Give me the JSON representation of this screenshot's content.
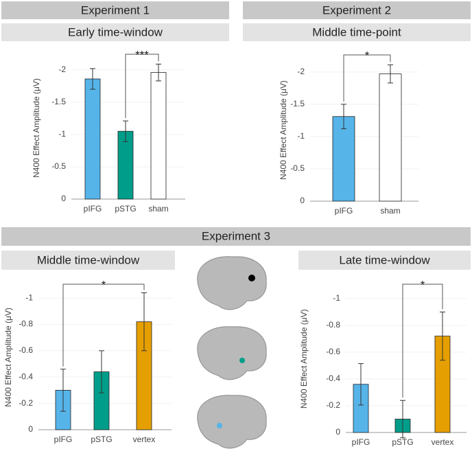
{
  "experiments": [
    "Experiment 1",
    "Experiment 2",
    "Experiment 3"
  ],
  "chart_data": [
    {
      "type": "bar",
      "title": "Early time-window",
      "y_label": "N400 Effect Amplitude (μV)",
      "categories": [
        "pIFG",
        "pSTG",
        "sham"
      ],
      "values": [
        -1.86,
        -1.05,
        -1.96
      ],
      "errors": [
        0.16,
        0.16,
        0.13
      ],
      "colors": [
        "#56b4e9",
        "#009e8a",
        "#ffffff"
      ],
      "ylim": [
        0,
        -2.2
      ],
      "yticks": [
        0,
        -0.5,
        -1,
        -1.5,
        -2
      ],
      "grid": true,
      "annotation": "***"
    },
    {
      "type": "bar",
      "title": "Middle time-point",
      "y_label": "N400 Effect Amplitude (μV)",
      "categories": [
        "pIFG",
        "sham"
      ],
      "values": [
        -1.31,
        -1.97
      ],
      "errors": [
        0.19,
        0.14
      ],
      "colors": [
        "#56b4e9",
        "#ffffff"
      ],
      "ylim": [
        0,
        -2.2
      ],
      "yticks": [
        0,
        -0.5,
        -1,
        -1.5,
        -2
      ],
      "grid": true,
      "annotation": "*"
    },
    {
      "type": "bar",
      "title": "Middle time-window",
      "y_label": "N400 Effect Amplitude (μV)",
      "categories": [
        "pIFG",
        "pSTG",
        "vertex"
      ],
      "values": [
        -0.3,
        -0.44,
        -0.82
      ],
      "errors": [
        0.16,
        0.16,
        0.22
      ],
      "colors": [
        "#56b4e9",
        "#009e8a",
        "#e69f00"
      ],
      "ylim": [
        0,
        -1.1
      ],
      "yticks": [
        0,
        -0.2,
        -0.4,
        -0.6,
        -0.8,
        -1
      ],
      "grid": true,
      "annotation": "*"
    },
    {
      "type": "bar",
      "title": "Late time-window",
      "y_label": "N400 Effect Amplitude (μV)",
      "categories": [
        "pIFG",
        "pSTG",
        "vertex"
      ],
      "values": [
        -0.36,
        -0.1,
        -0.72
      ],
      "errors": [
        0.155,
        0.14,
        0.18
      ],
      "colors": [
        "#56b4e9",
        "#009e8a",
        "#e69f00"
      ],
      "ylim": [
        0,
        -1.1
      ],
      "yticks": [
        0,
        -0.2,
        -0.4,
        -0.6,
        -0.8,
        -1
      ],
      "grid": true,
      "annotation": "*"
    }
  ]
}
